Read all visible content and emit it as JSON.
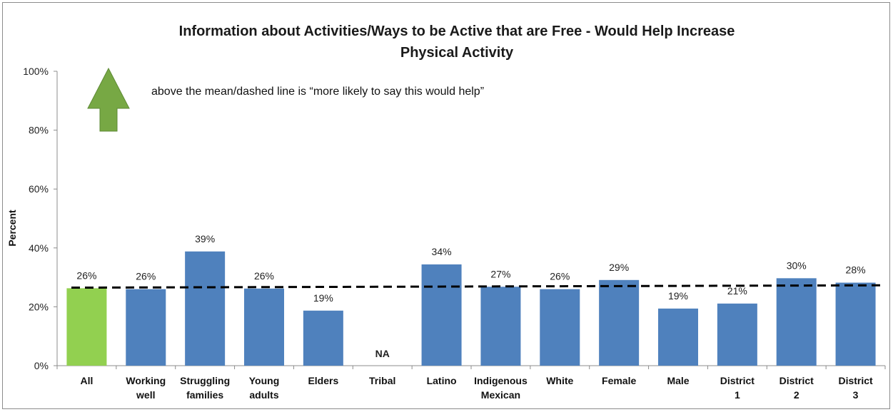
{
  "chart_data": {
    "type": "bar",
    "title_line1": "Information about Activities/Ways to be Active that are Free - Would Help Increase",
    "title_line2": "Physical Activity",
    "ylabel": "Percent",
    "xlabel": "",
    "ylim": [
      0,
      100
    ],
    "yticks": [
      "0%",
      "20%",
      "40%",
      "60%",
      "80%",
      "100%"
    ],
    "categories": [
      [
        "All"
      ],
      [
        "Working",
        "well"
      ],
      [
        "Struggling",
        "families"
      ],
      [
        "Young",
        "adults"
      ],
      [
        "Elders"
      ],
      [
        "Tribal"
      ],
      [
        "Latino"
      ],
      [
        "Indigenous",
        "Mexican"
      ],
      [
        "White"
      ],
      [
        "Female"
      ],
      [
        "Male"
      ],
      [
        "District",
        "1"
      ],
      [
        "District",
        "2"
      ],
      [
        "District",
        "3"
      ]
    ],
    "values": [
      26.3,
      26,
      38.8,
      26.2,
      18.7,
      null,
      34.4,
      26.8,
      26,
      29.1,
      19.4,
      21.1,
      29.7,
      28.2
    ],
    "data_labels": [
      "26%",
      "26%",
      "39%",
      "26%",
      "19%",
      "NA",
      "34%",
      "27%",
      "26%",
      "29%",
      "19%",
      "21%",
      "30%",
      "28%"
    ],
    "mean_line": {
      "start": 26.5,
      "end": 27.3,
      "style": "dashed"
    },
    "annotation": "above the mean/dashed line is “more likely to say this would help”",
    "grid": false,
    "legend": "none",
    "colors": {
      "highlight": "#92d050",
      "bar": "#4f81bd",
      "mean_line": "#000000",
      "arrow": "#77a844"
    }
  }
}
